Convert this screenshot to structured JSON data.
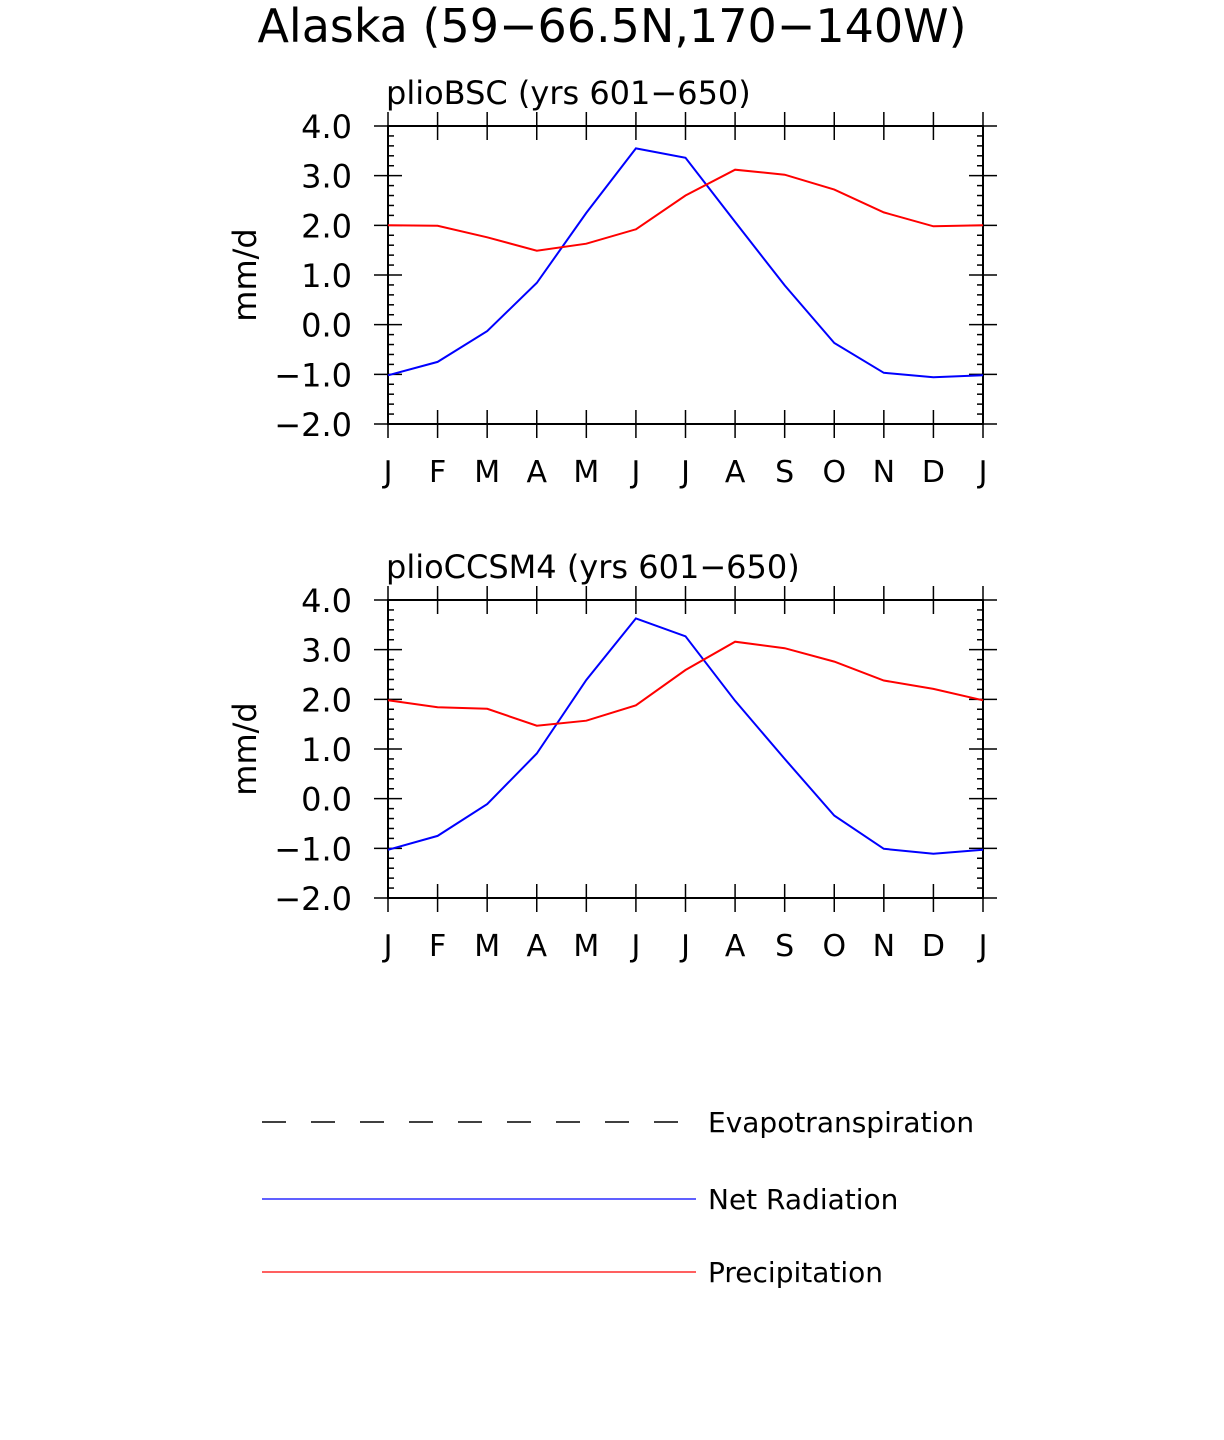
{
  "figure_title": "Alaska (59−66.5N,170−140W)",
  "chart_data": [
    {
      "type": "line",
      "title": "plioBSC (yrs 601−650)",
      "ylabel": "mm/d",
      "xlabel": "",
      "categories": [
        "J",
        "F",
        "M",
        "A",
        "M",
        "J",
        "J",
        "A",
        "S",
        "O",
        "N",
        "D",
        "J"
      ],
      "ylim": [
        -2.0,
        4.0
      ],
      "yticks": [
        "4.0",
        "3.0",
        "2.0",
        "1.0",
        "0.0",
        "−1.0",
        "−2.0"
      ],
      "series": [
        {
          "name": "Net Radiation",
          "color": "#0000ff",
          "values": [
            -1.02,
            -0.75,
            -0.13,
            0.84,
            2.25,
            3.55,
            3.36,
            2.07,
            0.79,
            -0.37,
            -0.97,
            -1.06,
            -1.02
          ]
        },
        {
          "name": "Precipitation",
          "color": "#ff0000",
          "values": [
            2.0,
            1.99,
            1.76,
            1.49,
            1.63,
            1.92,
            2.6,
            3.12,
            3.02,
            2.72,
            2.26,
            1.98,
            2.0
          ]
        }
      ]
    },
    {
      "type": "line",
      "title": "plioCCSM4 (yrs 601−650)",
      "ylabel": "mm/d",
      "xlabel": "",
      "categories": [
        "J",
        "F",
        "M",
        "A",
        "M",
        "J",
        "J",
        "A",
        "S",
        "O",
        "N",
        "D",
        "J"
      ],
      "ylim": [
        -2.0,
        4.0
      ],
      "yticks": [
        "4.0",
        "3.0",
        "2.0",
        "1.0",
        "0.0",
        "−1.0",
        "−2.0"
      ],
      "series": [
        {
          "name": "Net Radiation",
          "color": "#0000ff",
          "values": [
            -1.03,
            -0.75,
            -0.11,
            0.91,
            2.39,
            3.63,
            3.27,
            1.97,
            0.8,
            -0.34,
            -1.01,
            -1.11,
            -1.03
          ]
        },
        {
          "name": "Precipitation",
          "color": "#ff0000",
          "values": [
            1.98,
            1.84,
            1.81,
            1.47,
            1.57,
            1.88,
            2.59,
            3.16,
            3.03,
            2.76,
            2.38,
            2.21,
            1.98
          ]
        }
      ]
    }
  ],
  "legend": [
    {
      "label": "Evapotranspiration",
      "color": "#000000",
      "style": "dashed"
    },
    {
      "label": "Net Radiation",
      "color": "#0000ff",
      "style": "solid"
    },
    {
      "label": "Precipitation",
      "color": "#ff0000",
      "style": "solid"
    }
  ]
}
